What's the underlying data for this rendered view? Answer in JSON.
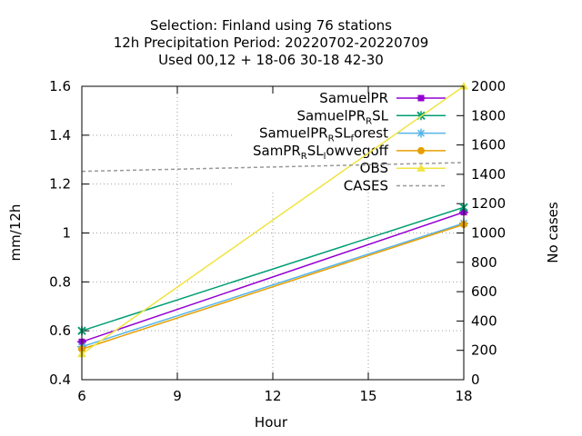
{
  "title_lines": [
    "Selection: Finland using     76 stations",
    "12h Precipitation    Period: 20220702-20220709",
    "Used  00,12  + 18-06 30-18 42-30"
  ],
  "chart_data": {
    "type": "line",
    "xlabel": "Hour",
    "ylabel": "mm/12h",
    "y2label": "No cases",
    "x": [
      6,
      18
    ],
    "xticks": [
      6,
      9,
      12,
      15,
      18
    ],
    "xlim": [
      6,
      18
    ],
    "ylim": [
      0.4,
      1.6
    ],
    "yticks": [
      "0.4",
      "0.6",
      "0.8",
      "1",
      "1.2",
      "1.4",
      "1.6"
    ],
    "y2lim": [
      0,
      2000
    ],
    "y2ticks": [
      "0",
      "200",
      "400",
      "600",
      "800",
      "1000",
      "1200",
      "1400",
      "1600",
      "1800",
      "2000"
    ],
    "grid": true,
    "legend_position": "top-right",
    "series": [
      {
        "legend": [
          "SamuelPR"
        ],
        "values": [
          0.555,
          1.085
        ],
        "color": "#9400d3",
        "marker": "square",
        "axis": "y"
      },
      {
        "legend": [
          "SamuelPR",
          "R",
          "SL"
        ],
        "values": [
          0.6,
          1.105
        ],
        "color": "#009e73",
        "marker": "cross",
        "axis": "y"
      },
      {
        "legend": [
          "SamuelPR",
          "R",
          "SL",
          "f",
          "orest"
        ],
        "values": [
          0.535,
          1.04
        ],
        "color": "#56b4e9",
        "marker": "star",
        "axis": "y"
      },
      {
        "legend": [
          "SamPR",
          "R",
          "SL",
          "l",
          "owvegoff"
        ],
        "values": [
          0.525,
          1.035
        ],
        "color": "#e69f00",
        "marker": "circle",
        "axis": "y"
      },
      {
        "legend": [
          "OBS"
        ],
        "values": [
          0.505,
          1.6
        ],
        "color": "#f0e442",
        "marker": "triangle",
        "axis": "y"
      },
      {
        "legend": [
          "CASES"
        ],
        "values": [
          1420,
          1480
        ],
        "color": "#999999",
        "dashed": true,
        "axis": "y2"
      }
    ]
  }
}
